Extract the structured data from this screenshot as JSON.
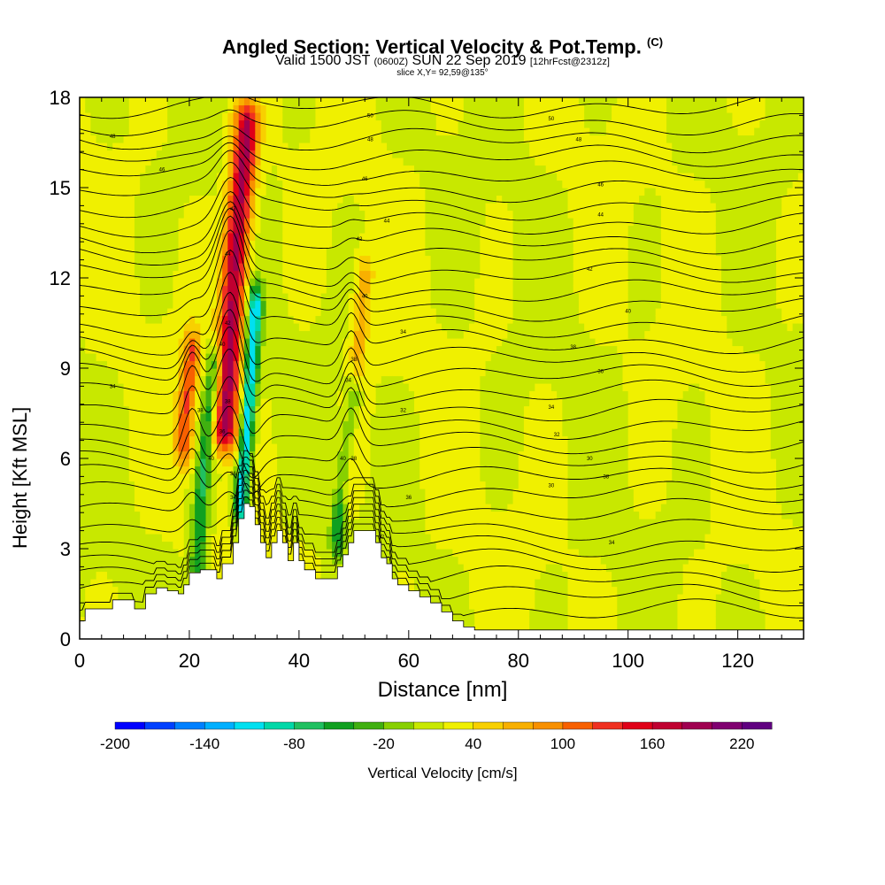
{
  "title": {
    "main": "Angled Section: Vertical Velocity & Pot.Temp.",
    "copyright": "(C)",
    "valid_prefix": "Valid 1500 JST",
    "valid_utc": "(0600Z)",
    "valid_date": "SUN 22 Sep 2019",
    "forecast": "[12hrFcst@2312z]",
    "slice": "slice X,Y= 92,59@135°"
  },
  "chart_data": {
    "type": "heatmap",
    "xlabel": "Distance [nm]",
    "ylabel": "Height [Kft MSL]",
    "xlim": [
      0,
      132
    ],
    "ylim": [
      0,
      18
    ],
    "x_ticks": [
      0,
      20,
      40,
      60,
      80,
      100,
      120
    ],
    "y_ticks": [
      0,
      3,
      6,
      9,
      12,
      15,
      18
    ],
    "colorbar": {
      "label": "Vertical Velocity [cm/s]",
      "tick_labels": [
        "-200",
        "-140",
        "-80",
        "-20",
        "40",
        "100",
        "160",
        "220"
      ],
      "tick_values": [
        -200,
        -140,
        -80,
        -20,
        40,
        100,
        160,
        220
      ],
      "range": [
        -200,
        240
      ],
      "colors": [
        "#0000ff",
        "#0040ff",
        "#0080ff",
        "#00b0ff",
        "#00e0f0",
        "#00d8a8",
        "#20c060",
        "#10a020",
        "#40b010",
        "#88d000",
        "#c8e800",
        "#f0f000",
        "#f8d000",
        "#f8b000",
        "#f89000",
        "#f86000",
        "#f03020",
        "#e00018",
        "#c00030",
        "#a00050",
        "#800070",
        "#600080"
      ]
    },
    "background_vv": 20,
    "updraft_bands": [
      {
        "name": "main-updraft",
        "x": [
          26.5,
          27.5,
          28.5,
          30.5
        ],
        "y": [
          7.0,
          10.0,
          13.0,
          17.0
        ],
        "vv": 170,
        "width": 2.2
      },
      {
        "name": "left-updraft",
        "x": [
          19.0,
          19.5,
          20.5
        ],
        "y": [
          6.5,
          8.0,
          9.5
        ],
        "vv": 100,
        "width": 1.6
      },
      {
        "name": "right-updraft",
        "x": [
          48.5,
          50.0,
          52.0
        ],
        "y": [
          5.0,
          8.0,
          12.0
        ],
        "vv": 50,
        "width": 1.5
      }
    ],
    "downdraft_bands": [
      {
        "name": "main-downdraft",
        "x": [
          29.5,
          30.5,
          32.0
        ],
        "y": [
          4.5,
          7.0,
          11.0
        ],
        "vv": -140,
        "width": 1.3
      },
      {
        "name": "left-downdraft",
        "x": [
          21.5,
          22.5,
          24.5
        ],
        "y": [
          2.5,
          5.5,
          9.0
        ],
        "vv": -80,
        "width": 1.4
      },
      {
        "name": "right-downdraft",
        "x": [
          47.0,
          48.5,
          50.0
        ],
        "y": [
          3.5,
          6.0,
          8.0
        ],
        "vv": -80,
        "width": 1.4
      }
    ],
    "terrain": [
      [
        0,
        0.6
      ],
      [
        1,
        1.0
      ],
      [
        4,
        1.0
      ],
      [
        6,
        1.3
      ],
      [
        8,
        1.3
      ],
      [
        10,
        1.0
      ],
      [
        12,
        1.5
      ],
      [
        14,
        1.7
      ],
      [
        16,
        1.6
      ],
      [
        18,
        1.5
      ],
      [
        19,
        1.8
      ],
      [
        20,
        2.2
      ],
      [
        22,
        2.3
      ],
      [
        24,
        2.3
      ],
      [
        25,
        2.0
      ],
      [
        26,
        2.5
      ],
      [
        27,
        2.5
      ],
      [
        28,
        3.2
      ],
      [
        29,
        4.0
      ],
      [
        30,
        4.5
      ],
      [
        31,
        4.4
      ],
      [
        32,
        3.8
      ],
      [
        33,
        3.2
      ],
      [
        34,
        2.7
      ],
      [
        35,
        3.2
      ],
      [
        36,
        3.6
      ],
      [
        37,
        3.2
      ],
      [
        38,
        2.6
      ],
      [
        39,
        3.2
      ],
      [
        40,
        2.6
      ],
      [
        41,
        2.3
      ],
      [
        42,
        2.3
      ],
      [
        43,
        2.0
      ],
      [
        46,
        2.0
      ],
      [
        47,
        2.4
      ],
      [
        48,
        2.8
      ],
      [
        49,
        3.2
      ],
      [
        50,
        3.6
      ],
      [
        52,
        3.6
      ],
      [
        54,
        3.2
      ],
      [
        55,
        2.7
      ],
      [
        56,
        2.5
      ],
      [
        57,
        2.0
      ],
      [
        58,
        1.8
      ],
      [
        60,
        1.6
      ],
      [
        62,
        1.4
      ],
      [
        64,
        1.2
      ],
      [
        66,
        0.9
      ],
      [
        68,
        0.6
      ],
      [
        70,
        0.4
      ],
      [
        72,
        0.3
      ],
      [
        132,
        0.3
      ]
    ],
    "theta_contours": {
      "start_height": 0.9,
      "spacing": 0.56,
      "count": 31,
      "labels": [
        {
          "x": 6,
          "y": 8.4,
          "text": "34"
        },
        {
          "x": 6,
          "y": 16.7,
          "text": "48"
        },
        {
          "x": 15,
          "y": 15.6,
          "text": "46"
        },
        {
          "x": 24,
          "y": 6.0,
          "text": "40"
        },
        {
          "x": 22,
          "y": 7.6,
          "text": "38"
        },
        {
          "x": 26,
          "y": 6.9,
          "text": "36"
        },
        {
          "x": 27,
          "y": 7.9,
          "text": "38"
        },
        {
          "x": 26,
          "y": 9.8,
          "text": "40"
        },
        {
          "x": 27,
          "y": 10.5,
          "text": "42"
        },
        {
          "x": 27,
          "y": 12.8,
          "text": "44"
        },
        {
          "x": 28,
          "y": 14.3,
          "text": "47"
        },
        {
          "x": 28,
          "y": 5.5,
          "text": "36"
        },
        {
          "x": 28,
          "y": 4.7,
          "text": "34"
        },
        {
          "x": 48,
          "y": 6.0,
          "text": "40"
        },
        {
          "x": 50,
          "y": 6.0,
          "text": "38"
        },
        {
          "x": 49,
          "y": 8.6,
          "text": "34"
        },
        {
          "x": 50,
          "y": 9.3,
          "text": "38"
        },
        {
          "x": 52,
          "y": 11.4,
          "text": "40"
        },
        {
          "x": 51,
          "y": 13.3,
          "text": "42"
        },
        {
          "x": 52,
          "y": 15.3,
          "text": "46"
        },
        {
          "x": 53,
          "y": 16.6,
          "text": "48"
        },
        {
          "x": 53,
          "y": 17.4,
          "text": "50"
        },
        {
          "x": 56,
          "y": 13.9,
          "text": "44"
        },
        {
          "x": 59,
          "y": 10.2,
          "text": "34"
        },
        {
          "x": 59,
          "y": 7.6,
          "text": "32"
        },
        {
          "x": 55,
          "y": 3.4,
          "text": "32"
        },
        {
          "x": 60,
          "y": 4.7,
          "text": "36"
        },
        {
          "x": 86,
          "y": 17.3,
          "text": "50"
        },
        {
          "x": 91,
          "y": 16.6,
          "text": "48"
        },
        {
          "x": 95,
          "y": 15.1,
          "text": "46"
        },
        {
          "x": 95,
          "y": 14.1,
          "text": "44"
        },
        {
          "x": 93,
          "y": 12.3,
          "text": "42"
        },
        {
          "x": 100,
          "y": 10.9,
          "text": "40"
        },
        {
          "x": 90,
          "y": 9.7,
          "text": "38"
        },
        {
          "x": 95,
          "y": 8.9,
          "text": "36"
        },
        {
          "x": 86,
          "y": 7.7,
          "text": "34"
        },
        {
          "x": 87,
          "y": 6.8,
          "text": "32"
        },
        {
          "x": 93,
          "y": 6.0,
          "text": "30"
        },
        {
          "x": 96,
          "y": 5.4,
          "text": "38"
        },
        {
          "x": 86,
          "y": 5.1,
          "text": "30"
        },
        {
          "x": 97,
          "y": 3.2,
          "text": "34"
        }
      ]
    }
  }
}
